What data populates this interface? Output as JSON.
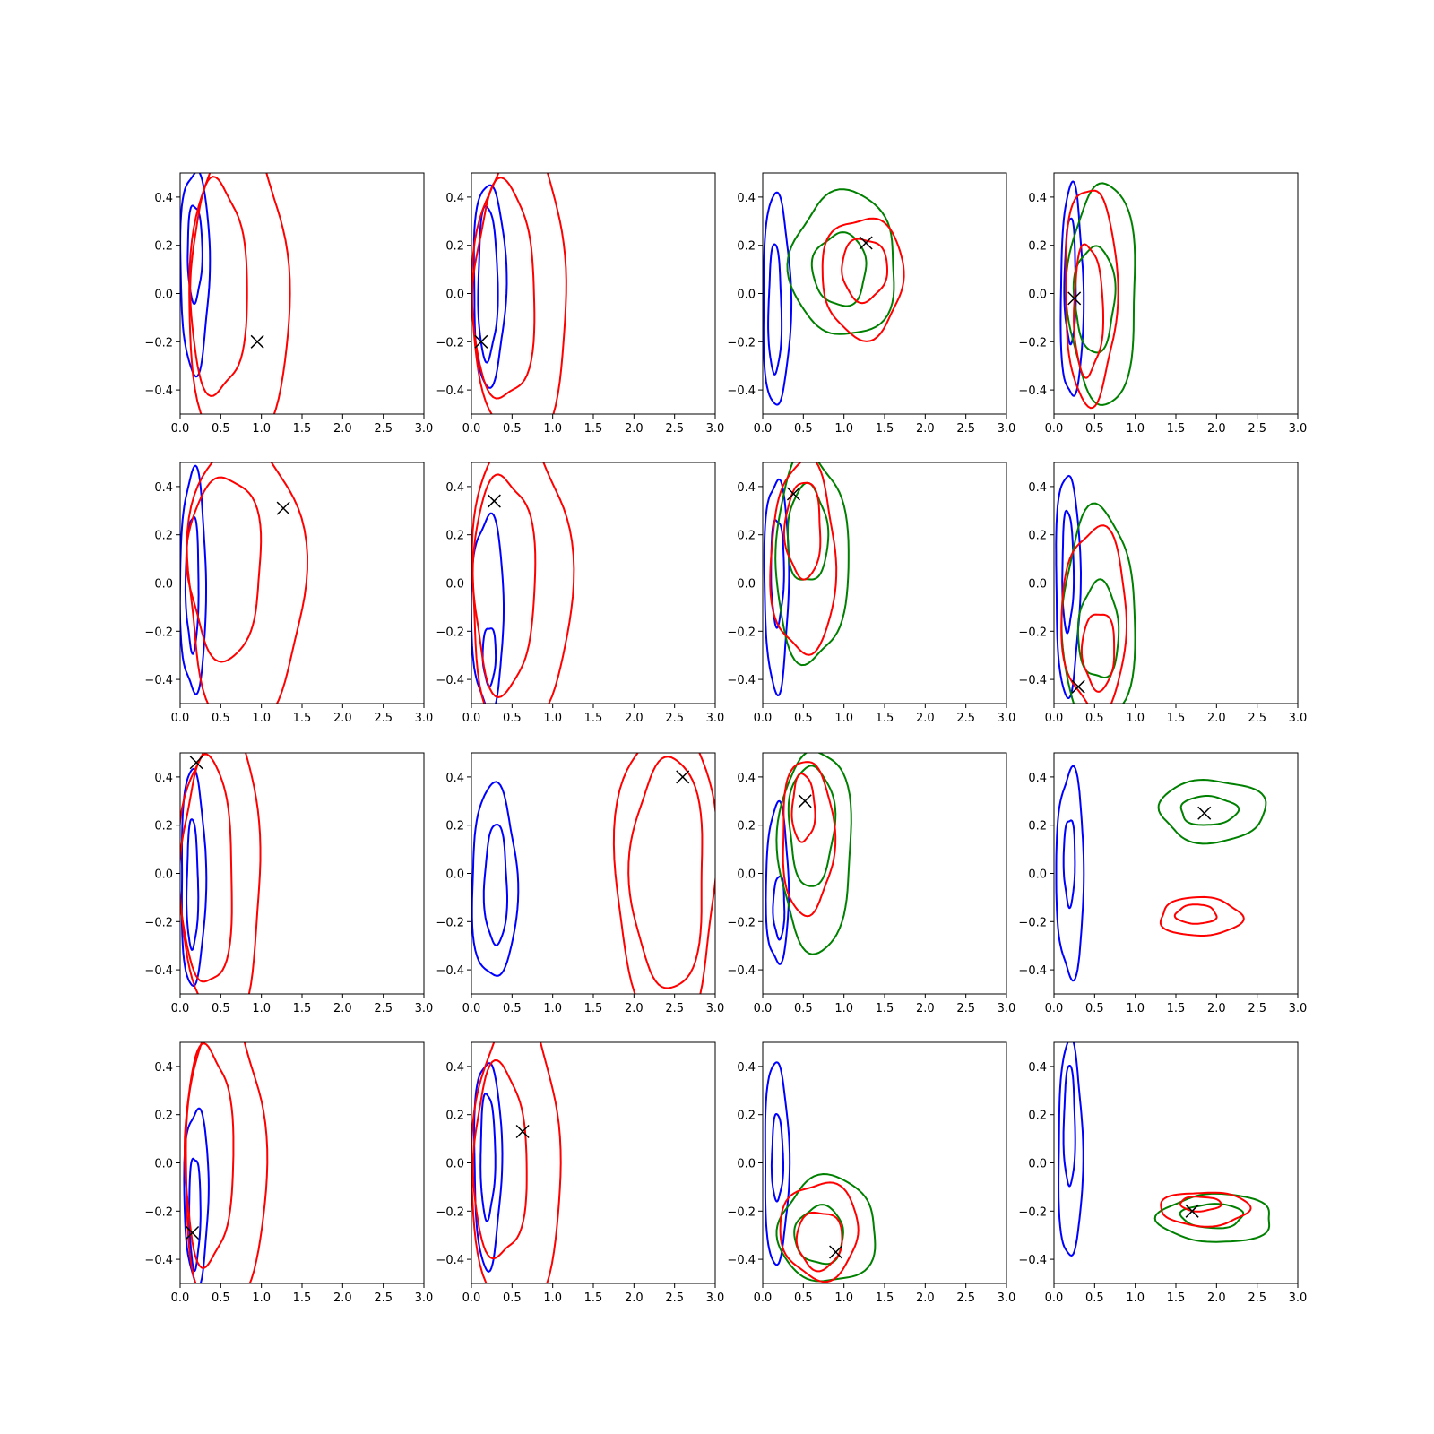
{
  "chart_data": {
    "type": "contour",
    "layout": {
      "rows": 4,
      "cols": 4
    },
    "xlim": [
      0,
      3
    ],
    "ylim": [
      -0.5,
      0.5
    ],
    "xticks": [
      "0.0",
      "0.5",
      "1.0",
      "1.5",
      "2.0",
      "2.5",
      "3.0"
    ],
    "yticks": [
      "−0.4",
      "−0.2",
      "0.0",
      "0.2",
      "0.4"
    ],
    "xtick_values": [
      0,
      0.5,
      1,
      1.5,
      2,
      2.5,
      3
    ],
    "ytick_values": [
      -0.4,
      -0.2,
      0,
      0.2,
      0.4
    ],
    "colors": {
      "blue": "#0000ff",
      "red": "#ff0000",
      "green": "#008000",
      "marker": "#000000"
    },
    "series_colors": [
      "blue",
      "red",
      "green"
    ],
    "panels": [
      {
        "row": 0,
        "col": 0,
        "marker": [
          0.95,
          -0.2
        ],
        "contours": [
          {
            "color": "blue",
            "cx": 0.18,
            "cy": 0.1,
            "rx": 0.18,
            "ry": 0.42
          },
          {
            "color": "blue",
            "cx": 0.18,
            "cy": 0.17,
            "rx": 0.09,
            "ry": 0.2
          },
          {
            "color": "red",
            "cx": 0.47,
            "cy": 0.02,
            "rx": 0.35,
            "ry": 0.44
          },
          {
            "color": "red",
            "cx": 0.72,
            "cy": 0.0,
            "rx": 0.62,
            "ry": 0.65
          }
        ]
      },
      {
        "row": 0,
        "col": 1,
        "marker": [
          0.12,
          -0.2
        ],
        "contours": [
          {
            "color": "blue",
            "cx": 0.22,
            "cy": 0.04,
            "rx": 0.2,
            "ry": 0.42
          },
          {
            "color": "blue",
            "cx": 0.2,
            "cy": 0.04,
            "rx": 0.12,
            "ry": 0.32
          },
          {
            "color": "red",
            "cx": 0.4,
            "cy": 0.0,
            "rx": 0.38,
            "ry": 0.45
          },
          {
            "color": "red",
            "cx": 0.6,
            "cy": 0.0,
            "rx": 0.58,
            "ry": 0.62
          }
        ]
      },
      {
        "row": 0,
        "col": 2,
        "marker": [
          1.27,
          0.21
        ],
        "contours": [
          {
            "color": "blue",
            "cx": 0.17,
            "cy": -0.03,
            "rx": 0.17,
            "ry": 0.44
          },
          {
            "color": "blue",
            "cx": 0.15,
            "cy": -0.07,
            "rx": 0.08,
            "ry": 0.27
          },
          {
            "color": "green",
            "cx": 1.0,
            "cy": 0.12,
            "rx": 0.65,
            "ry": 0.3
          },
          {
            "color": "green",
            "cx": 0.95,
            "cy": 0.1,
            "rx": 0.33,
            "ry": 0.15
          },
          {
            "color": "red",
            "cx": 1.23,
            "cy": 0.07,
            "rx": 0.5,
            "ry": 0.25
          },
          {
            "color": "red",
            "cx": 1.25,
            "cy": 0.1,
            "rx": 0.28,
            "ry": 0.13
          }
        ]
      },
      {
        "row": 0,
        "col": 3,
        "marker": [
          0.25,
          -0.02
        ],
        "contours": [
          {
            "color": "blue",
            "cx": 0.22,
            "cy": 0.0,
            "rx": 0.14,
            "ry": 0.44
          },
          {
            "color": "blue",
            "cx": 0.2,
            "cy": 0.05,
            "rx": 0.07,
            "ry": 0.26
          },
          {
            "color": "green",
            "cx": 0.6,
            "cy": 0.0,
            "rx": 0.42,
            "ry": 0.46
          },
          {
            "color": "green",
            "cx": 0.5,
            "cy": -0.02,
            "rx": 0.25,
            "ry": 0.22
          },
          {
            "color": "red",
            "cx": 0.45,
            "cy": 0.0,
            "rx": 0.32,
            "ry": 0.45
          },
          {
            "color": "red",
            "cx": 0.42,
            "cy": -0.07,
            "rx": 0.18,
            "ry": 0.27
          }
        ]
      },
      {
        "row": 1,
        "col": 0,
        "marker": [
          1.27,
          0.31
        ],
        "contours": [
          {
            "color": "blue",
            "cx": 0.16,
            "cy": 0.0,
            "rx": 0.16,
            "ry": 0.46
          },
          {
            "color": "blue",
            "cx": 0.15,
            "cy": 0.0,
            "rx": 0.08,
            "ry": 0.28
          },
          {
            "color": "red",
            "cx": 0.55,
            "cy": 0.07,
            "rx": 0.45,
            "ry": 0.38
          },
          {
            "color": "red",
            "cx": 0.8,
            "cy": 0.0,
            "rx": 0.72,
            "ry": 0.6
          }
        ]
      },
      {
        "row": 1,
        "col": 1,
        "marker": [
          0.28,
          0.34
        ],
        "contours": [
          {
            "color": "blue",
            "cx": 0.2,
            "cy": -0.12,
            "rx": 0.2,
            "ry": 0.4
          },
          {
            "color": "blue",
            "cx": 0.22,
            "cy": -0.3,
            "rx": 0.08,
            "ry": 0.12
          },
          {
            "color": "red",
            "cx": 0.4,
            "cy": 0.0,
            "rx": 0.38,
            "ry": 0.45
          },
          {
            "color": "red",
            "cx": 0.6,
            "cy": 0.0,
            "rx": 0.62,
            "ry": 0.62
          }
        ]
      },
      {
        "row": 1,
        "col": 2,
        "marker": [
          0.38,
          0.37
        ],
        "contours": [
          {
            "color": "blue",
            "cx": 0.17,
            "cy": 0.0,
            "rx": 0.15,
            "ry": 0.44
          },
          {
            "color": "blue",
            "cx": 0.18,
            "cy": 0.05,
            "rx": 0.08,
            "ry": 0.22
          },
          {
            "color": "green",
            "cx": 0.6,
            "cy": 0.1,
            "rx": 0.45,
            "ry": 0.43
          },
          {
            "color": "green",
            "cx": 0.55,
            "cy": 0.2,
            "rx": 0.25,
            "ry": 0.2
          },
          {
            "color": "red",
            "cx": 0.5,
            "cy": 0.1,
            "rx": 0.4,
            "ry": 0.4
          },
          {
            "color": "red",
            "cx": 0.5,
            "cy": 0.22,
            "rx": 0.22,
            "ry": 0.2
          }
        ]
      },
      {
        "row": 1,
        "col": 3,
        "marker": [
          0.3,
          -0.43
        ],
        "contours": [
          {
            "color": "blue",
            "cx": 0.17,
            "cy": 0.0,
            "rx": 0.15,
            "ry": 0.46
          },
          {
            "color": "blue",
            "cx": 0.17,
            "cy": 0.05,
            "rx": 0.07,
            "ry": 0.25
          },
          {
            "color": "green",
            "cx": 0.55,
            "cy": -0.15,
            "rx": 0.45,
            "ry": 0.45
          },
          {
            "color": "green",
            "cx": 0.55,
            "cy": -0.2,
            "rx": 0.25,
            "ry": 0.2
          },
          {
            "color": "red",
            "cx": 0.5,
            "cy": -0.15,
            "rx": 0.4,
            "ry": 0.38
          },
          {
            "color": "red",
            "cx": 0.55,
            "cy": -0.28,
            "rx": 0.2,
            "ry": 0.16
          }
        ]
      },
      {
        "row": 2,
        "col": 0,
        "marker": [
          0.2,
          0.46
        ],
        "contours": [
          {
            "color": "blue",
            "cx": 0.16,
            "cy": -0.02,
            "rx": 0.15,
            "ry": 0.45
          },
          {
            "color": "blue",
            "cx": 0.15,
            "cy": -0.05,
            "rx": 0.07,
            "ry": 0.27
          },
          {
            "color": "red",
            "cx": 0.33,
            "cy": 0.0,
            "rx": 0.32,
            "ry": 0.47
          },
          {
            "color": "red",
            "cx": 0.5,
            "cy": 0.0,
            "rx": 0.5,
            "ry": 0.62
          }
        ]
      },
      {
        "row": 2,
        "col": 1,
        "marker": [
          2.6,
          0.4
        ],
        "contours": [
          {
            "color": "blue",
            "cx": 0.28,
            "cy": -0.04,
            "rx": 0.28,
            "ry": 0.4
          },
          {
            "color": "blue",
            "cx": 0.3,
            "cy": -0.05,
            "rx": 0.14,
            "ry": 0.25
          },
          {
            "color": "red",
            "cx": 2.42,
            "cy": 0.0,
            "rx": 0.45,
            "ry": 0.48
          },
          {
            "color": "red",
            "cx": 2.4,
            "cy": 0.0,
            "rx": 0.62,
            "ry": 0.65
          }
        ]
      },
      {
        "row": 2,
        "col": 2,
        "marker": [
          0.52,
          0.3
        ],
        "contours": [
          {
            "color": "blue",
            "cx": 0.18,
            "cy": -0.05,
            "rx": 0.14,
            "ry": 0.33
          },
          {
            "color": "blue",
            "cx": 0.2,
            "cy": -0.14,
            "rx": 0.07,
            "ry": 0.13
          },
          {
            "color": "green",
            "cx": 0.65,
            "cy": 0.1,
            "rx": 0.45,
            "ry": 0.42
          },
          {
            "color": "green",
            "cx": 0.6,
            "cy": 0.2,
            "rx": 0.28,
            "ry": 0.25
          },
          {
            "color": "red",
            "cx": 0.55,
            "cy": 0.15,
            "rx": 0.32,
            "ry": 0.32
          },
          {
            "color": "red",
            "cx": 0.5,
            "cy": 0.27,
            "rx": 0.14,
            "ry": 0.14
          }
        ]
      },
      {
        "row": 2,
        "col": 3,
        "marker": [
          1.85,
          0.25
        ],
        "contours": [
          {
            "color": "blue",
            "cx": 0.2,
            "cy": 0.0,
            "rx": 0.17,
            "ry": 0.43
          },
          {
            "color": "blue",
            "cx": 0.19,
            "cy": 0.05,
            "rx": 0.07,
            "ry": 0.18
          },
          {
            "color": "green",
            "cx": 1.95,
            "cy": 0.26,
            "rx": 0.65,
            "ry": 0.13
          },
          {
            "color": "green",
            "cx": 1.9,
            "cy": 0.26,
            "rx": 0.35,
            "ry": 0.06
          },
          {
            "color": "red",
            "cx": 1.8,
            "cy": -0.18,
            "rx": 0.5,
            "ry": 0.08
          },
          {
            "color": "red",
            "cx": 1.75,
            "cy": -0.17,
            "rx": 0.25,
            "ry": 0.04
          }
        ]
      },
      {
        "row": 3,
        "col": 0,
        "marker": [
          0.15,
          -0.29
        ],
        "contours": [
          {
            "color": "blue",
            "cx": 0.2,
            "cy": -0.13,
            "rx": 0.15,
            "ry": 0.36
          },
          {
            "color": "blue",
            "cx": 0.18,
            "cy": -0.2,
            "rx": 0.07,
            "ry": 0.23
          },
          {
            "color": "red",
            "cx": 0.35,
            "cy": 0.03,
            "rx": 0.3,
            "ry": 0.45
          },
          {
            "color": "red",
            "cx": 0.55,
            "cy": 0.0,
            "rx": 0.5,
            "ry": 0.62
          }
        ]
      },
      {
        "row": 3,
        "col": 1,
        "marker": [
          0.63,
          0.13
        ],
        "contours": [
          {
            "color": "blue",
            "cx": 0.2,
            "cy": 0.0,
            "rx": 0.17,
            "ry": 0.43
          },
          {
            "color": "blue",
            "cx": 0.2,
            "cy": 0.03,
            "rx": 0.09,
            "ry": 0.26
          },
          {
            "color": "red",
            "cx": 0.35,
            "cy": 0.0,
            "rx": 0.33,
            "ry": 0.4
          },
          {
            "color": "red",
            "cx": 0.55,
            "cy": 0.0,
            "rx": 0.55,
            "ry": 0.62
          }
        ]
      },
      {
        "row": 3,
        "col": 2,
        "marker": [
          0.9,
          -0.37
        ],
        "contours": [
          {
            "color": "blue",
            "cx": 0.17,
            "cy": 0.0,
            "rx": 0.15,
            "ry": 0.42
          },
          {
            "color": "blue",
            "cx": 0.18,
            "cy": 0.02,
            "rx": 0.07,
            "ry": 0.18
          },
          {
            "color": "green",
            "cx": 0.8,
            "cy": -0.28,
            "rx": 0.6,
            "ry": 0.22
          },
          {
            "color": "green",
            "cx": 0.7,
            "cy": -0.3,
            "rx": 0.3,
            "ry": 0.12
          },
          {
            "color": "red",
            "cx": 0.7,
            "cy": -0.28,
            "rx": 0.48,
            "ry": 0.2
          },
          {
            "color": "red",
            "cx": 0.7,
            "cy": -0.32,
            "rx": 0.28,
            "ry": 0.12
          }
        ]
      },
      {
        "row": 3,
        "col": 3,
        "marker": [
          1.7,
          -0.2
        ],
        "contours": [
          {
            "color": "blue",
            "cx": 0.2,
            "cy": 0.05,
            "rx": 0.15,
            "ry": 0.45
          },
          {
            "color": "blue",
            "cx": 0.19,
            "cy": 0.15,
            "rx": 0.07,
            "ry": 0.25
          },
          {
            "color": "green",
            "cx": 2.0,
            "cy": -0.23,
            "rx": 0.7,
            "ry": 0.1
          },
          {
            "color": "green",
            "cx": 1.95,
            "cy": -0.22,
            "rx": 0.38,
            "ry": 0.05
          },
          {
            "color": "red",
            "cx": 1.85,
            "cy": -0.19,
            "rx": 0.55,
            "ry": 0.07
          },
          {
            "color": "red",
            "cx": 1.8,
            "cy": -0.17,
            "rx": 0.25,
            "ry": 0.03
          }
        ]
      }
    ]
  }
}
